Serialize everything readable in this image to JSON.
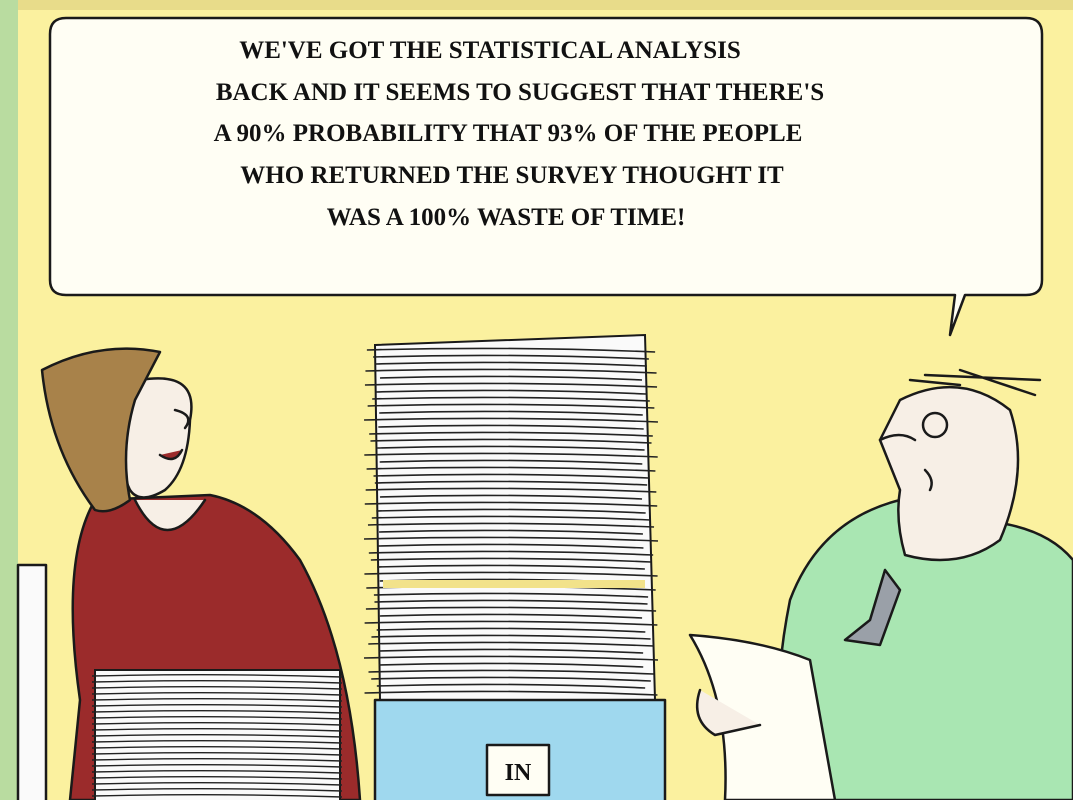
{
  "speech_bubble": {
    "lines": [
      "WE'VE GOT THE STATISTICAL ANALYSIS",
      "BACK AND IT SEEMS TO SUGGEST THAT THERE'S",
      "A 90% PROBABILITY THAT 93% OF THE PEOPLE",
      "WHO RETURNED THE SURVEY THOUGHT IT",
      "WAS A 100% WASTE OF TIME!"
    ]
  },
  "tray_label": "IN"
}
